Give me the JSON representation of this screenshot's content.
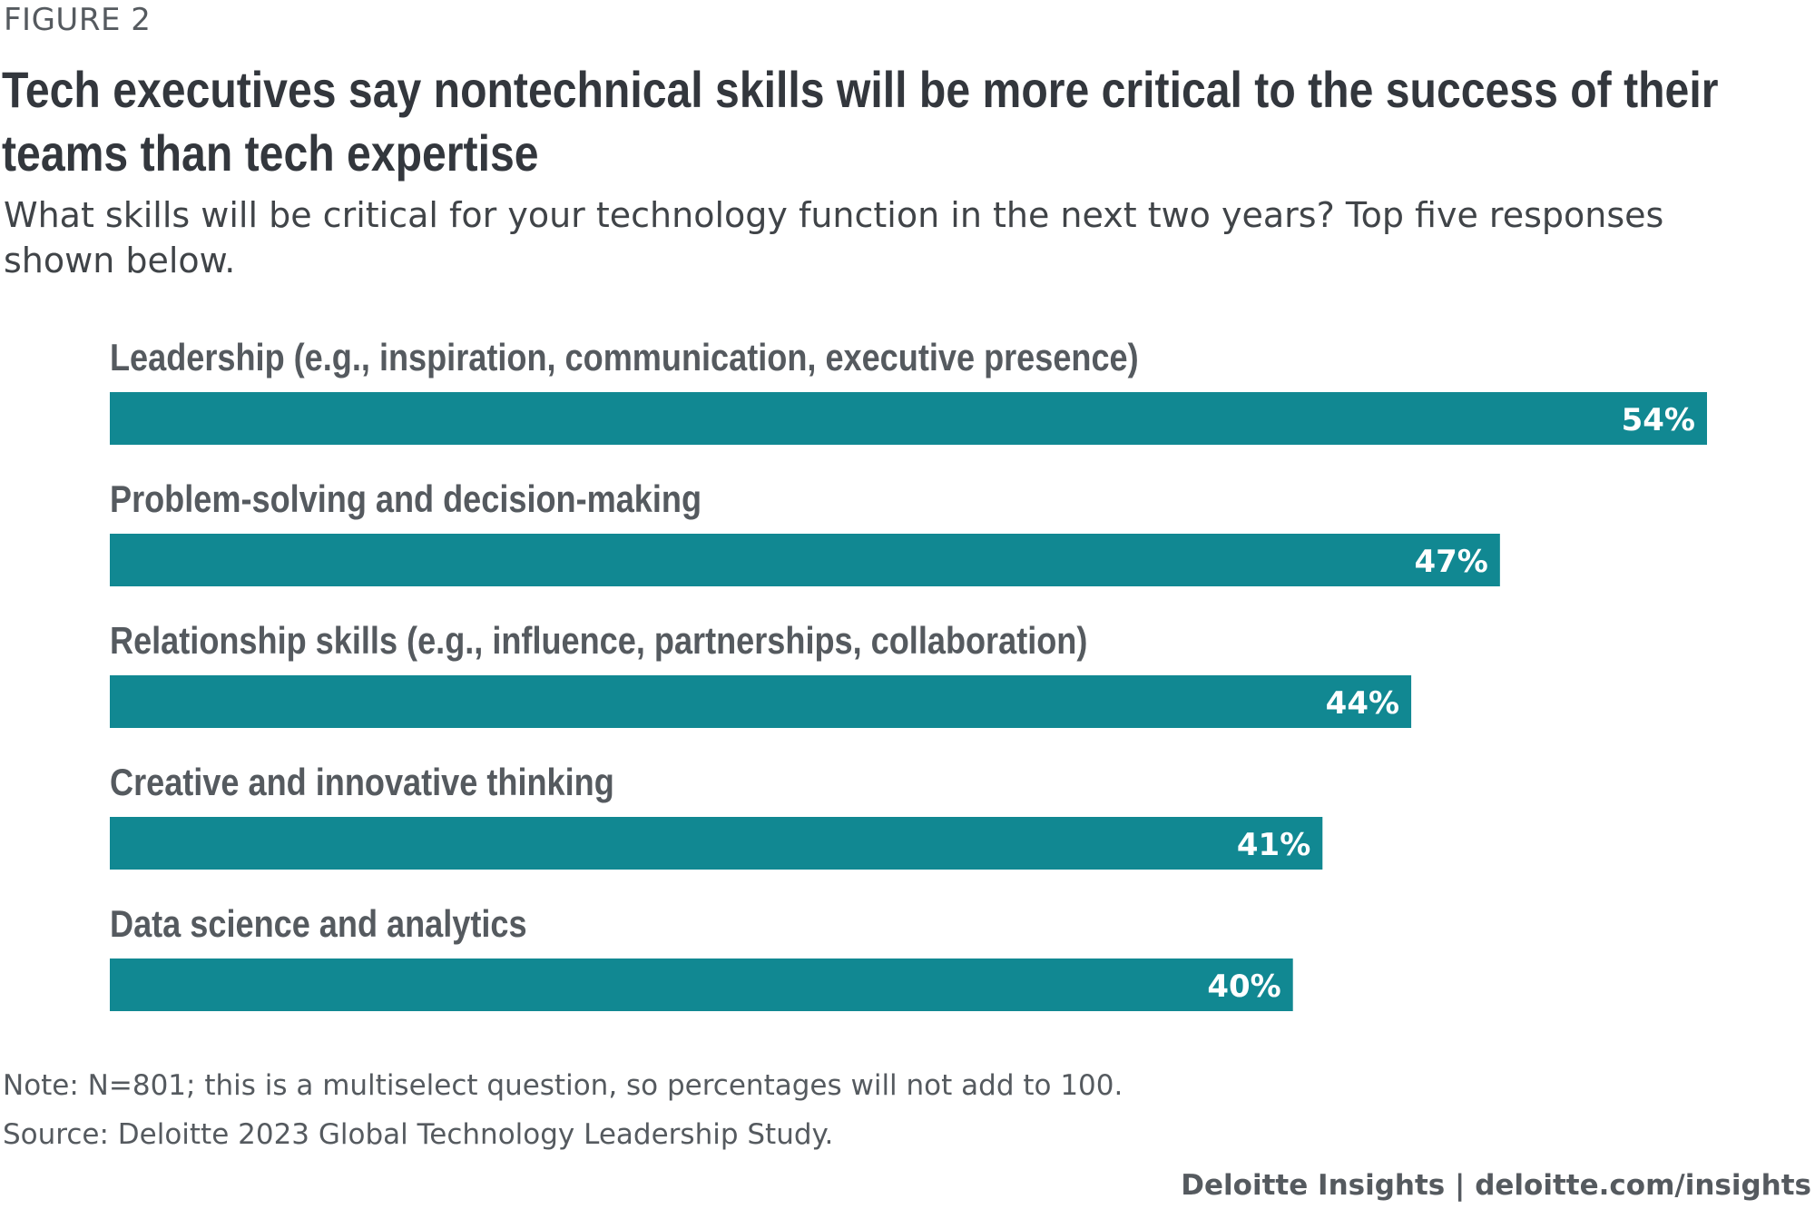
{
  "figure_label": "FIGURE 2",
  "title": "Tech executives say nontechnical skills will be more critical to the success of their teams than tech expertise",
  "subtitle": "What skills will be critical for your technology function in the next two years? Top five responses shown below.",
  "note": "Note: N=801; this is a multiselect question, so percentages will not add to 100.",
  "source": "Source: Deloitte 2023 Global Technology Leadership Study.",
  "brand": {
    "name": "Deloitte Insights",
    "separator": " | ",
    "url": "deloitte.com/insights"
  },
  "colors": {
    "bar": "#118892",
    "category_label": "#555a5f",
    "value_label": "#ffffff"
  },
  "chart_data": {
    "type": "bar",
    "orientation": "horizontal",
    "categories": [
      "Leadership (e.g., inspiration, communication, executive presence)",
      "Problem-solving and decision-making",
      "Relationship skills (e.g., influence, partnerships, collaboration)",
      "Creative and innovative thinking",
      "Data science and analytics"
    ],
    "values": [
      54,
      47,
      44,
      41,
      40
    ],
    "value_labels": [
      "54%",
      "47%",
      "44%",
      "41%",
      "40%"
    ],
    "unit": "%",
    "xlim": [
      0,
      54
    ],
    "grid": false,
    "legend": false
  }
}
